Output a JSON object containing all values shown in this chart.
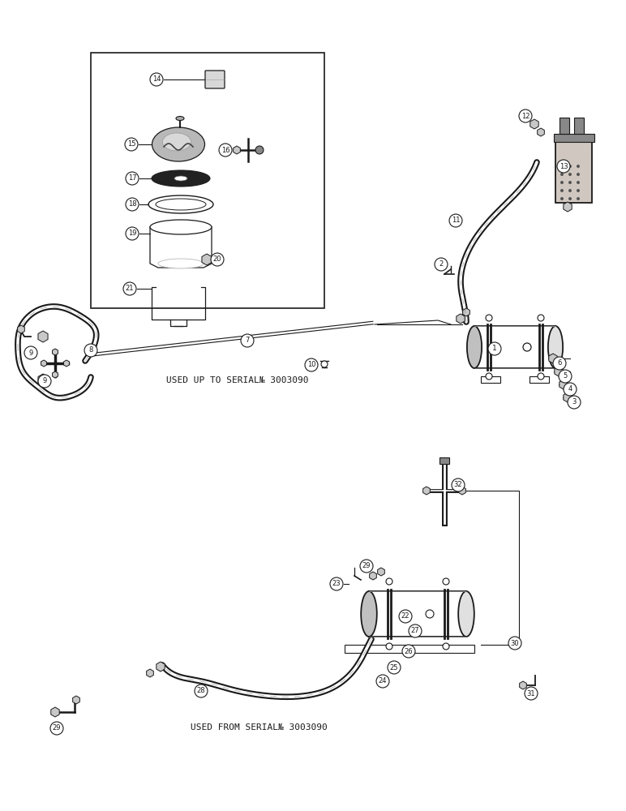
{
  "bg_color": "#ffffff",
  "line_color": "#1a1a1a",
  "text_serial_up": "USED UP TO SERIAL№ 3003090",
  "text_serial_from": "USED FROM SERIAL№ 3003090"
}
